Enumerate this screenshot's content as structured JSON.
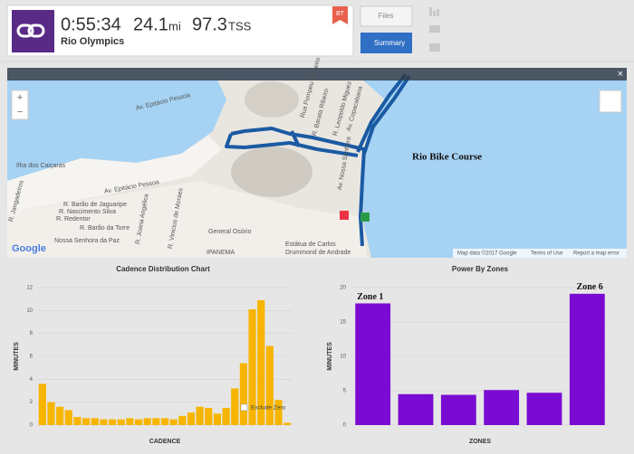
{
  "header": {
    "duration": "0:55:34",
    "distance": "24.1",
    "distance_unit": "mi",
    "tss": "97.3",
    "tss_unit": "TSS",
    "title": "Rio Olympics",
    "badge": "BT",
    "buttons": [
      "Files",
      "Summary"
    ]
  },
  "map": {
    "title": "Rio Bike Course",
    "labels": [
      "Av. Epitácio Pessoa",
      "Av. Epitácio Pessoa",
      "Rua Pompeu Loureiro",
      "R. Barata Ribeiro",
      "R. Leopoldo Miguez",
      "Av. Copacabana",
      "Ilha dos Caiçaras",
      "R. Barão de Jaguaripe",
      "R. Nascimento Silva",
      "R. Redentor",
      "R. Barão da Torre",
      "Nossa Senhora da Paz",
      "General Osório",
      "IPANEMA",
      "Estátua de Carlos",
      "Drummond de Andrade",
      "R. Joana Angélica",
      "R. Vinicius de Moraes",
      "Av. Nossa Senhora",
      "R. Jangadeiros"
    ],
    "attribution": [
      "Map data ©2017 Google",
      "Terms of Use",
      "Report a map error"
    ],
    "logo": "Google",
    "zoom": [
      "+",
      "−"
    ]
  },
  "chart_data": [
    {
      "type": "bar",
      "title": "Cadence Distribution Chart",
      "x_label": "CADENCE",
      "y_label": "MINUTES",
      "checkbox_label": "Exclude Zero",
      "color": "#f7b500",
      "categories": [
        null,
        null,
        null,
        null,
        null,
        null,
        null,
        null,
        null,
        null,
        null,
        null,
        null,
        null,
        null,
        null,
        null,
        null,
        null,
        null,
        null,
        null,
        null,
        null,
        null,
        null,
        null,
        null,
        null
      ],
      "values": [
        3.6,
        2.0,
        1.6,
        1.3,
        0.7,
        0.6,
        0.6,
        0.5,
        0.5,
        0.5,
        0.6,
        0.5,
        0.6,
        0.6,
        0.6,
        0.5,
        0.8,
        1.1,
        1.6,
        1.5,
        1.0,
        1.5,
        3.2,
        5.4,
        10.1,
        10.9,
        6.9,
        2.2,
        0.2
      ],
      "ylim": [
        0,
        12
      ],
      "yticks": [
        0,
        2,
        4,
        6,
        8,
        10,
        12
      ],
      "grid": true
    },
    {
      "type": "bar",
      "title": "Power By Zones",
      "x_label": "ZONES",
      "y_label": "MINUTES",
      "color": "#7a0bd2",
      "categories": [
        "Zone 1",
        null,
        null,
        null,
        null,
        "Zone 6"
      ],
      "values": [
        17.7,
        4.5,
        4.4,
        5.1,
        4.7,
        19.1
      ],
      "ylim": [
        0,
        20
      ],
      "yticks": [
        0,
        5,
        10,
        15,
        20
      ],
      "grid": true
    }
  ]
}
